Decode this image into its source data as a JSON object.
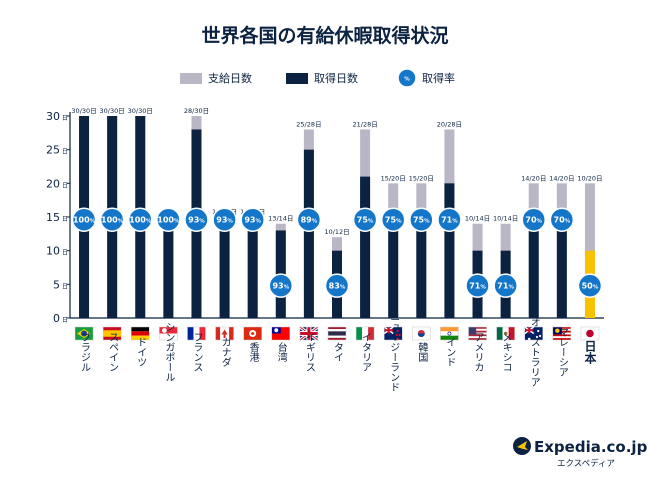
{
  "chart_data": {
    "type": "bar",
    "title": "世界各国の有給休暇取得状況",
    "legend": {
      "granted": "支給日数",
      "taken": "取得日数",
      "rate": "取得率",
      "rate_icon_text": "%"
    },
    "y_unit": "日",
    "ylim": [
      0,
      30
    ],
    "yticks": [
      0,
      5,
      10,
      15,
      20,
      25,
      30
    ],
    "pct_unit": "%",
    "colors": {
      "granted": "#b9b7c6",
      "taken": "#0b2240",
      "japan_taken": "#f7c200",
      "badge": "#1476c9",
      "badge_ring": "#ffffff"
    },
    "countries": [
      {
        "name": "ブラジル",
        "flag": "brazil",
        "granted": 30,
        "taken": 30,
        "rate": 100,
        "label": "30/30日"
      },
      {
        "name": "スペイン",
        "flag": "spain",
        "granted": 30,
        "taken": 30,
        "rate": 100,
        "label": "30/30日"
      },
      {
        "name": "ドイツ",
        "flag": "germany",
        "granted": 30,
        "taken": 30,
        "rate": 100,
        "label": "30/30日"
      },
      {
        "name": "シンガポール",
        "flag": "singapore",
        "granted": 14,
        "taken": 14,
        "rate": 100,
        "label": "14/14日"
      },
      {
        "name": "フランス",
        "flag": "france",
        "granted": 30,
        "taken": 28,
        "rate": 93,
        "label": "28/30日"
      },
      {
        "name": "カナダ",
        "flag": "canada",
        "granted": 15,
        "taken": 14,
        "rate": 93,
        "label": "14/15日"
      },
      {
        "name": "香港",
        "flag": "hongkong",
        "granted": 15,
        "taken": 14,
        "rate": 93,
        "label": "14/15日"
      },
      {
        "name": "台湾",
        "flag": "taiwan",
        "granted": 14,
        "taken": 13,
        "rate": 93,
        "label": "13/14日"
      },
      {
        "name": "イギリス",
        "flag": "uk",
        "granted": 28,
        "taken": 25,
        "rate": 89,
        "label": "25/28日"
      },
      {
        "name": "タイ",
        "flag": "thailand",
        "granted": 12,
        "taken": 10,
        "rate": 83,
        "label": "10/12日"
      },
      {
        "name": "イタリア",
        "flag": "italy",
        "granted": 28,
        "taken": 21,
        "rate": 75,
        "label": "21/28日"
      },
      {
        "name": "ニュージーランド",
        "flag": "newzealand",
        "granted": 20,
        "taken": 15,
        "rate": 75,
        "label": "15/20日"
      },
      {
        "name": "韓国",
        "flag": "korea",
        "granted": 20,
        "taken": 15,
        "rate": 75,
        "label": "15/20日"
      },
      {
        "name": "インド",
        "flag": "india",
        "granted": 28,
        "taken": 20,
        "rate": 71,
        "label": "20/28日"
      },
      {
        "name": "アメリカ",
        "flag": "usa",
        "granted": 14,
        "taken": 10,
        "rate": 71,
        "label": "10/14日"
      },
      {
        "name": "メキシコ",
        "flag": "mexico",
        "granted": 14,
        "taken": 10,
        "rate": 71,
        "label": "10/14日"
      },
      {
        "name": "オーストラリア",
        "flag": "australia",
        "granted": 20,
        "taken": 14,
        "rate": 70,
        "label": "14/20日"
      },
      {
        "name": "マレーシア",
        "flag": "malaysia",
        "granted": 20,
        "taken": 14,
        "rate": 70,
        "label": "14/20日"
      },
      {
        "name": "日本",
        "flag": "japan",
        "granted": 20,
        "taken": 10,
        "rate": 50,
        "label": "10/20日",
        "highlight": true
      }
    ]
  },
  "branding": {
    "logo_text": "Expedia.co.jp",
    "logo_sub": "エクスペディア"
  }
}
